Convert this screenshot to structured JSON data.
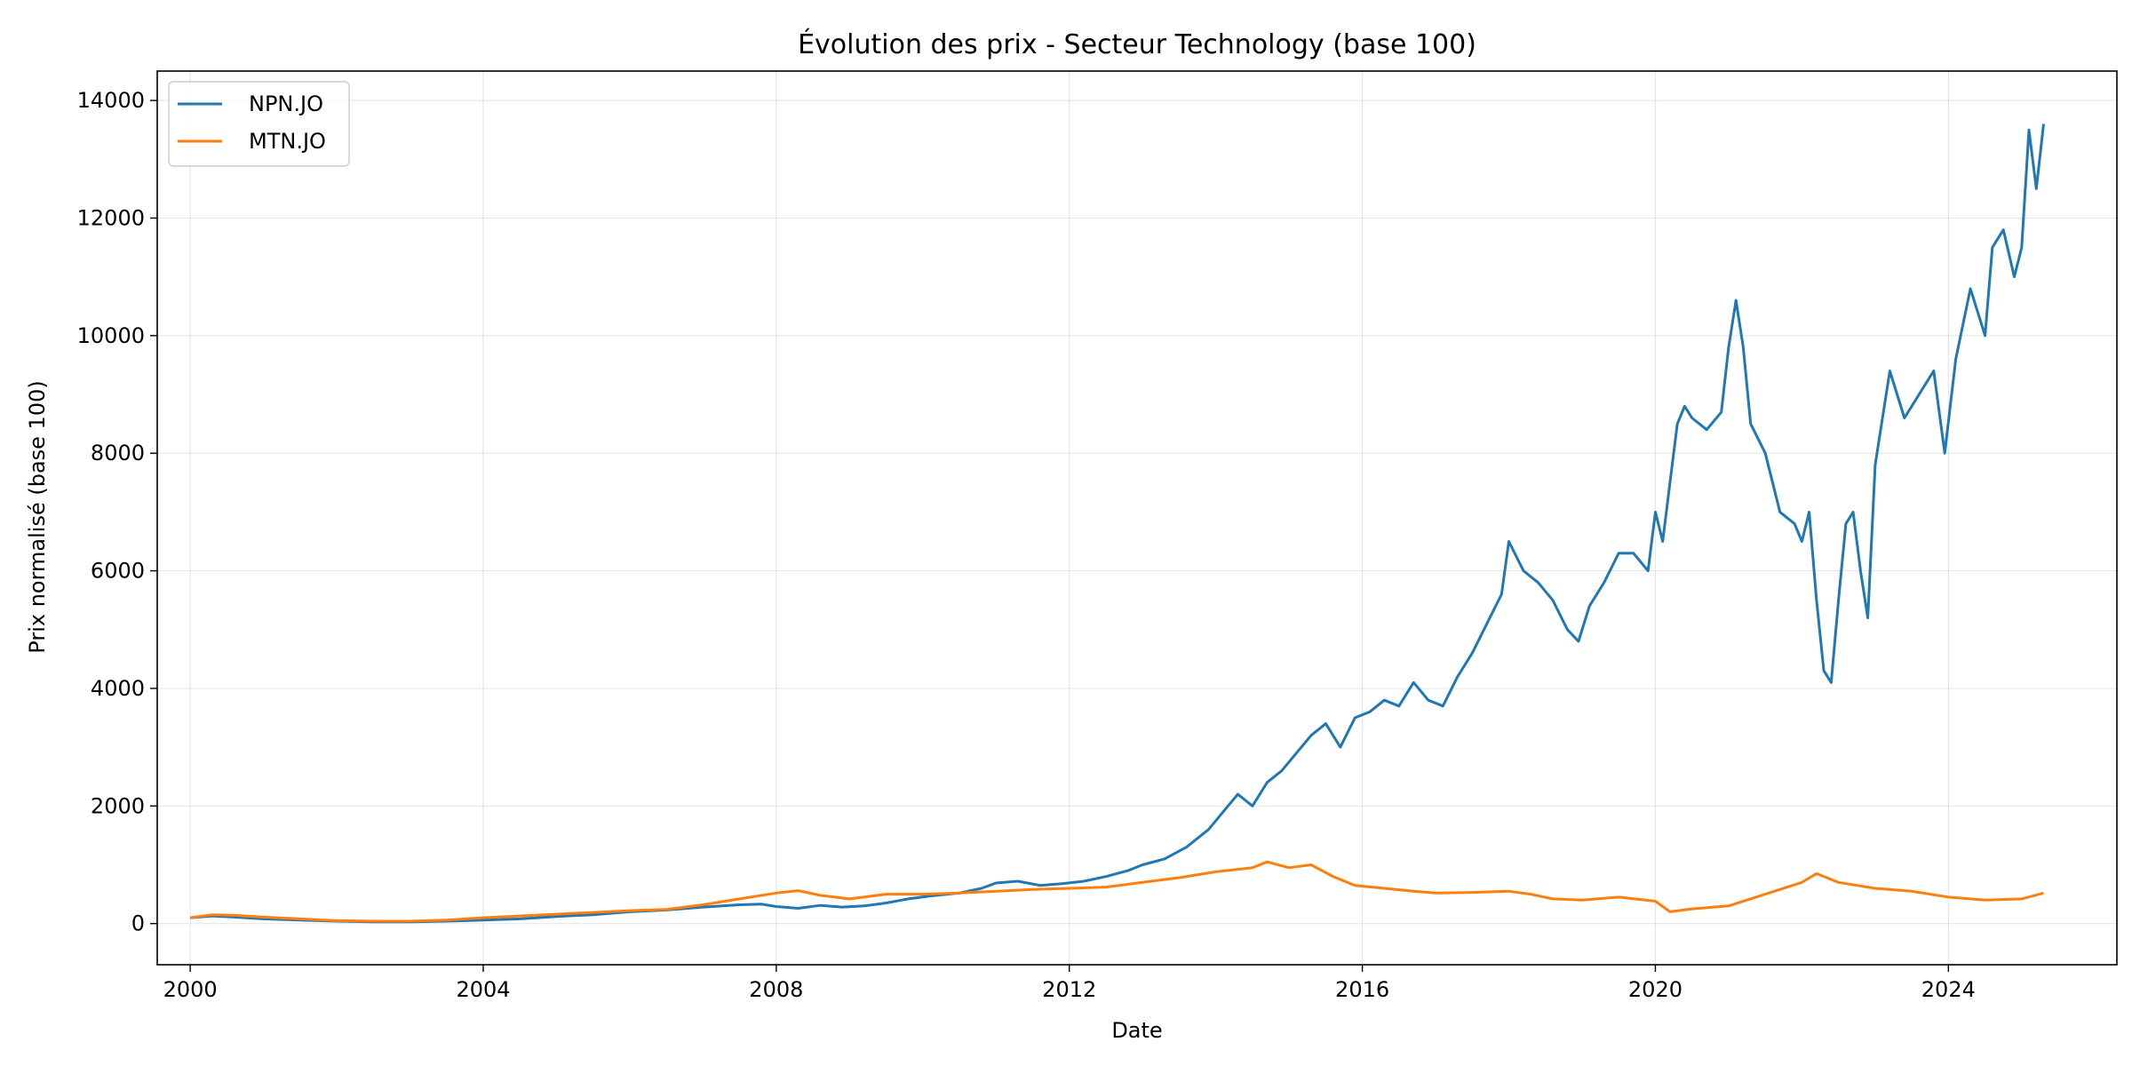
{
  "chart_data": {
    "type": "line",
    "title": "Évolution des prix - Secteur Technology (base 100)",
    "xlabel": "Date",
    "ylabel": "Prix normalisé (base 100)",
    "xlim": [
      1999.55,
      2026.3
    ],
    "ylim": [
      -700,
      14500
    ],
    "xticks": [
      2000,
      2004,
      2008,
      2012,
      2016,
      2020,
      2024
    ],
    "xtick_labels": [
      "2000",
      "2004",
      "2008",
      "2012",
      "2016",
      "2020",
      "2024"
    ],
    "yticks": [
      0,
      2000,
      4000,
      6000,
      8000,
      10000,
      12000,
      14000
    ],
    "ytick_labels": [
      "0",
      "2000",
      "4000",
      "6000",
      "8000",
      "10000",
      "12000",
      "14000"
    ],
    "grid": true,
    "legend_position": "top-left",
    "series": [
      {
        "name": "NPN.JO",
        "color": "#1f77b4",
        "x": [
          2000.0,
          2000.3,
          2000.6,
          2001.0,
          2001.5,
          2002.0,
          2002.5,
          2003.0,
          2003.5,
          2004.0,
          2004.5,
          2005.0,
          2005.5,
          2006.0,
          2006.5,
          2007.0,
          2007.5,
          2007.8,
          2008.0,
          2008.3,
          2008.6,
          2008.9,
          2009.2,
          2009.5,
          2009.8,
          2010.1,
          2010.5,
          2010.8,
          2011.0,
          2011.3,
          2011.6,
          2011.9,
          2012.2,
          2012.5,
          2012.8,
          2013.0,
          2013.3,
          2013.6,
          2013.9,
          2014.1,
          2014.3,
          2014.5,
          2014.7,
          2014.9,
          2015.1,
          2015.3,
          2015.5,
          2015.7,
          2015.9,
          2016.1,
          2016.3,
          2016.5,
          2016.7,
          2016.9,
          2017.1,
          2017.3,
          2017.5,
          2017.7,
          2017.9,
          2018.0,
          2018.2,
          2018.4,
          2018.6,
          2018.8,
          2018.95,
          2019.1,
          2019.3,
          2019.5,
          2019.7,
          2019.9,
          2020.0,
          2020.1,
          2020.2,
          2020.3,
          2020.4,
          2020.5,
          2020.7,
          2020.9,
          2021.0,
          2021.1,
          2021.2,
          2021.3,
          2021.5,
          2021.7,
          2021.9,
          2022.0,
          2022.1,
          2022.2,
          2022.3,
          2022.4,
          2022.5,
          2022.6,
          2022.7,
          2022.8,
          2022.9,
          2023.0,
          2023.2,
          2023.4,
          2023.6,
          2023.8,
          2023.95,
          2024.1,
          2024.3,
          2024.5,
          2024.6,
          2024.75,
          2024.9,
          2025.0,
          2025.1,
          2025.2,
          2025.3
        ],
        "y": [
          100,
          130,
          110,
          80,
          60,
          40,
          30,
          30,
          40,
          60,
          80,
          120,
          150,
          200,
          230,
          280,
          320,
          330,
          290,
          260,
          310,
          280,
          300,
          350,
          420,
          470,
          520,
          600,
          690,
          720,
          650,
          680,
          720,
          800,
          900,
          1000,
          1100,
          1300,
          1600,
          1900,
          2200,
          2000,
          2400,
          2600,
          2900,
          3200,
          3400,
          3000,
          3500,
          3600,
          3800,
          3700,
          4100,
          3800,
          3700,
          4200,
          4600,
          5100,
          5600,
          6500,
          6000,
          5800,
          5500,
          5000,
          4800,
          5400,
          5800,
          6300,
          6300,
          6000,
          7000,
          6500,
          7500,
          8500,
          8800,
          8600,
          8400,
          8700,
          9800,
          10600,
          9800,
          8500,
          8000,
          7000,
          6800,
          6500,
          7000,
          5500,
          4300,
          4100,
          5500,
          6800,
          7000,
          6000,
          5200,
          7800,
          9400,
          8600,
          9000,
          9400,
          8000,
          9600,
          10800,
          10000,
          11500,
          11800,
          11000,
          11500,
          13500,
          12500,
          13600
        ]
      },
      {
        "name": "MTN.JO",
        "color": "#ff7f0e",
        "x": [
          2000.0,
          2000.3,
          2000.6,
          2001.0,
          2001.5,
          2002.0,
          2002.5,
          2003.0,
          2003.5,
          2004.0,
          2004.5,
          2005.0,
          2005.5,
          2006.0,
          2006.5,
          2007.0,
          2007.5,
          2008.0,
          2008.3,
          2008.6,
          2009.0,
          2009.5,
          2010.0,
          2010.5,
          2011.0,
          2011.5,
          2012.0,
          2012.5,
          2013.0,
          2013.5,
          2014.0,
          2014.5,
          2014.7,
          2015.0,
          2015.3,
          2015.6,
          2015.9,
          2016.3,
          2016.7,
          2017.0,
          2017.5,
          2018.0,
          2018.3,
          2018.6,
          2019.0,
          2019.5,
          2020.0,
          2020.2,
          2020.5,
          2021.0,
          2021.5,
          2022.0,
          2022.2,
          2022.5,
          2023.0,
          2023.5,
          2024.0,
          2024.5,
          2025.0,
          2025.3
        ],
        "y": [
          100,
          150,
          140,
          110,
          80,
          50,
          40,
          40,
          60,
          100,
          130,
          160,
          190,
          220,
          240,
          320,
          420,
          520,
          560,
          480,
          420,
          500,
          500,
          520,
          550,
          580,
          600,
          620,
          700,
          780,
          880,
          950,
          1050,
          950,
          1000,
          800,
          650,
          600,
          550,
          520,
          530,
          550,
          500,
          420,
          400,
          450,
          380,
          200,
          250,
          300,
          500,
          700,
          850,
          700,
          600,
          550,
          450,
          400,
          420,
          520
        ]
      }
    ]
  }
}
